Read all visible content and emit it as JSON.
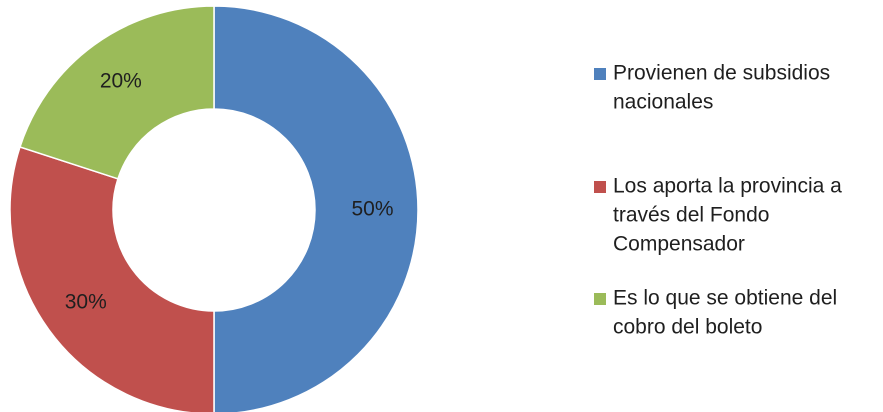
{
  "chart_data": {
    "type": "pie",
    "donut": true,
    "legend_position": "right",
    "slices": [
      {
        "label": "Provienen de subsidios nacionales",
        "legend_lines": [
          "Provienen de subsidios",
          "nacionales"
        ],
        "value": 50,
        "display": "50%",
        "color": "#4f81bd"
      },
      {
        "label": "Los aporta la provincia a través del Fondo Compensador",
        "legend_lines": [
          "Los aporta la provincia a",
          "través del Fondo",
          "Compensador"
        ],
        "value": 30,
        "display": "30%",
        "color": "#c0504d"
      },
      {
        "label": "Es lo que se obtiene del cobro del boleto",
        "legend_lines": [
          "Es lo que se obtiene del",
          "cobro del boleto"
        ],
        "value": 20,
        "display": "20%",
        "color": "#9bbb59"
      }
    ]
  }
}
